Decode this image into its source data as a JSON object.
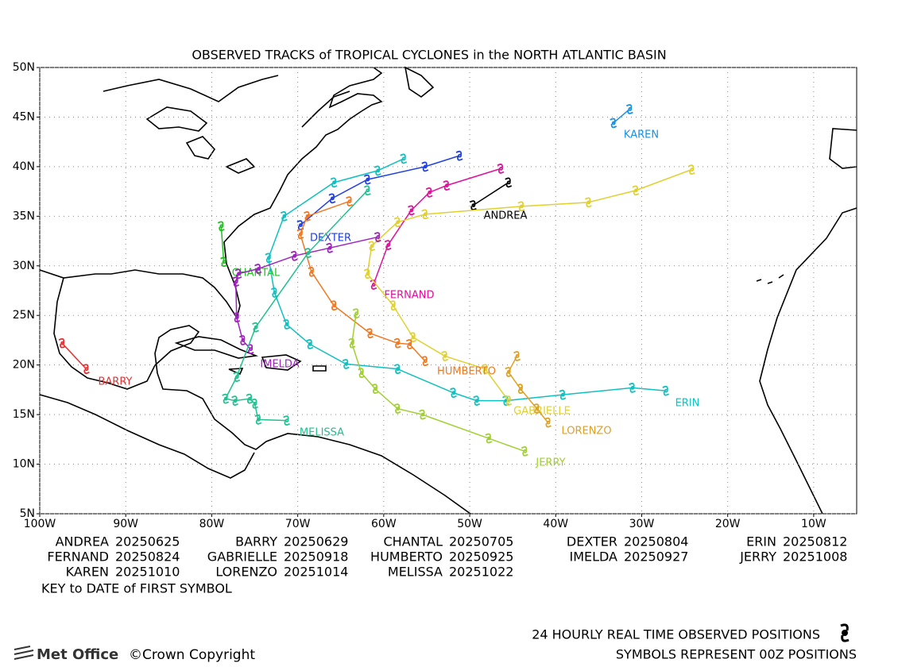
{
  "chart_data": {
    "type": "track-map",
    "title": "OBSERVED TRACKS of TROPICAL CYCLONES in the NORTH ATLANTIC BASIN",
    "xlim": [
      -100,
      -5
    ],
    "ylim": [
      5,
      50
    ],
    "grid": true,
    "xticks": [
      {
        "value": -100,
        "label": "100W"
      },
      {
        "value": -90,
        "label": "90W"
      },
      {
        "value": -80,
        "label": "80W"
      },
      {
        "value": -70,
        "label": "70W"
      },
      {
        "value": -60,
        "label": "60W"
      },
      {
        "value": -50,
        "label": "50W"
      },
      {
        "value": -40,
        "label": "40W"
      },
      {
        "value": -30,
        "label": "30W"
      },
      {
        "value": -20,
        "label": "20W"
      },
      {
        "value": -10,
        "label": "10W"
      }
    ],
    "yticks": [
      {
        "value": 5,
        "label": "5N"
      },
      {
        "value": 10,
        "label": "10N"
      },
      {
        "value": 15,
        "label": "15N"
      },
      {
        "value": 20,
        "label": "20N"
      },
      {
        "value": 25,
        "label": "25N"
      },
      {
        "value": 30,
        "label": "30N"
      },
      {
        "value": 35,
        "label": "35N"
      },
      {
        "value": 40,
        "label": "40N"
      },
      {
        "value": 45,
        "label": "45N"
      },
      {
        "value": 50,
        "label": "50N"
      }
    ],
    "series": [
      {
        "name": "ANDREA",
        "first_date": "20250625",
        "color": "#000000",
        "lon": [
          -49.6,
          -45.5
        ],
        "lat": [
          36.1,
          38.4
        ]
      },
      {
        "name": "BARRY",
        "first_date": "20250629",
        "color": "#e83030",
        "lon": [
          -97.4,
          -94.6
        ],
        "lat": [
          22.2,
          19.6
        ]
      },
      {
        "name": "CHANTAL",
        "first_date": "20250705",
        "color": "#20c020",
        "lon": [
          -78.9,
          -78.6
        ],
        "lat": [
          34.0,
          30.4
        ]
      },
      {
        "name": "DEXTER",
        "first_date": "20250804",
        "color": "#2040e0",
        "lon": [
          -69.7,
          -66.0,
          -61.9,
          -55.2,
          -51.2
        ],
        "lat": [
          34.1,
          36.8,
          38.7,
          40.0,
          41.1
        ]
      },
      {
        "name": "ERIN",
        "first_date": "20250812",
        "color": "#10c0c0",
        "lon": [
          -27.2,
          -31.1,
          -39.2,
          -45.8,
          -49.2,
          -51.9,
          -58.4,
          -64.4,
          -68.6,
          -71.3,
          -72.7,
          -73.4,
          -71.6,
          -65.8,
          -60.7,
          -57.7
        ],
        "lat": [
          17.4,
          17.7,
          17.0,
          16.4,
          16.4,
          17.2,
          19.6,
          20.1,
          22.1,
          24.1,
          27.3,
          30.8,
          35.0,
          38.4,
          39.6,
          40.8
        ]
      },
      {
        "name": "FERNAND",
        "first_date": "20250824",
        "color": "#e0109a",
        "lon": [
          -61.2,
          -59.5,
          -56.8,
          -54.7,
          -52.7,
          -46.4
        ],
        "lat": [
          28.1,
          32.1,
          35.6,
          37.4,
          38.1,
          39.8
        ]
      },
      {
        "name": "GABRIELLE",
        "first_date": "20250918",
        "color": "#e0d030",
        "lon": [
          -45.5,
          -48.2,
          -52.9,
          -56.6,
          -58.9,
          -61.9,
          -61.4,
          -58.4,
          -55.2,
          -44.0,
          -36.2,
          -30.7,
          -24.2
        ],
        "lat": [
          16.4,
          19.6,
          20.9,
          22.8,
          26.0,
          29.2,
          32.0,
          34.4,
          35.2,
          36.0,
          36.4,
          37.6,
          39.7
        ]
      },
      {
        "name": "HUMBERTO",
        "first_date": "20250925",
        "color": "#f07820",
        "lon": [
          -55.2,
          -57.0,
          -58.4,
          -61.6,
          -65.8,
          -68.4,
          -69.7,
          -68.9,
          -64.0
        ],
        "lat": [
          20.4,
          22.1,
          22.2,
          23.2,
          26.0,
          29.4,
          33.2,
          35.0,
          36.5
        ]
      },
      {
        "name": "IMELDA",
        "first_date": "20250927",
        "color": "#a020c0",
        "lon": [
          -75.5,
          -76.4,
          -77.1,
          -77.2,
          -76.9,
          -74.6,
          -70.4,
          -66.3,
          -60.7
        ],
        "lat": [
          21.6,
          22.5,
          24.8,
          28.4,
          29.2,
          29.7,
          31.0,
          31.8,
          32.9
        ]
      },
      {
        "name": "JERRY",
        "first_date": "20251008",
        "color": "#a0d030",
        "lon": [
          -43.6,
          -47.8,
          -55.5,
          -58.4,
          -61.0,
          -62.6,
          -63.7,
          -63.2
        ],
        "lat": [
          11.3,
          12.6,
          15.0,
          15.6,
          17.6,
          19.2,
          22.2,
          25.2
        ]
      },
      {
        "name": "KAREN",
        "first_date": "20251010",
        "color": "#1a90e0",
        "lon": [
          -33.3,
          -31.4
        ],
        "lat": [
          44.4,
          45.8
        ]
      },
      {
        "name": "LORENZO",
        "first_date": "20251014",
        "color": "#e0a020",
        "lon": [
          -40.9,
          -42.2,
          -44.1,
          -45.5,
          -44.5
        ],
        "lat": [
          14.2,
          15.6,
          17.6,
          19.3,
          20.9
        ]
      },
      {
        "name": "MELISSA",
        "first_date": "20251022",
        "color": "#20c090",
        "lon": [
          -71.3,
          -74.6,
          -75.0,
          -75.6,
          -77.3,
          -78.4,
          -77.1,
          -74.9,
          -68.8,
          -61.9
        ],
        "lat": [
          14.4,
          14.5,
          16.1,
          16.6,
          16.4,
          16.6,
          18.8,
          23.8,
          31.3,
          37.6
        ]
      }
    ],
    "key_title": "KEY to DATE of FIRST SYMBOL",
    "note_1": "24 HOURLY REAL TIME OBSERVED POSITIONS",
    "note_2": "SYMBOLS REPRESENT 00Z POSITIONS",
    "brand": "Met Office",
    "copyright": "©Crown Copyright"
  }
}
